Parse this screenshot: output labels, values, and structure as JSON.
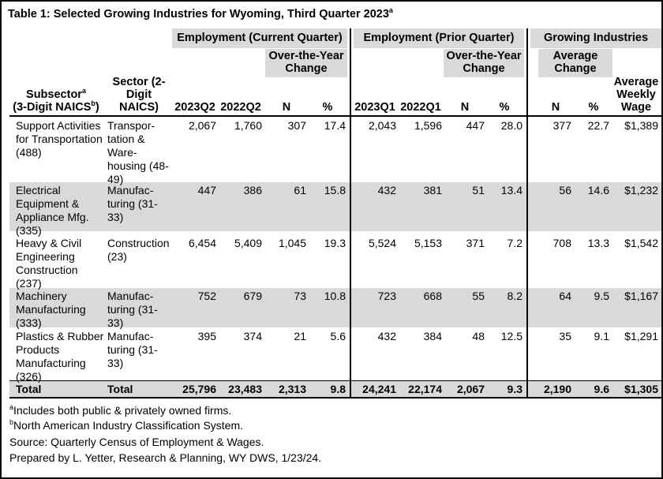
{
  "title": "Table 1: Selected Growing Industries for Wyoming, Third Quarter 2023",
  "title_sup": "a",
  "groups": {
    "current": "Employment (Current Quarter)",
    "prior": "Employment (Prior Quarter)",
    "growing": "Growing Industries"
  },
  "subgroups": {
    "oty": "Over-the-Year Change",
    "oty2": "Over-the-Year Change",
    "avg": "Average Change"
  },
  "columns": {
    "subsector_line1": "Subsector",
    "subsector_sup": "a",
    "subsector_line2": "(3-Digit NAICS",
    "subsector_sup2": "b",
    "subsector_close": ")",
    "sector": "Sector (2-Digit NAICS)",
    "q1": "2023Q2",
    "q2": "2022Q2",
    "n1": "N",
    "p1": "%",
    "q3": "2023Q1",
    "q4": "2022Q1",
    "n2": "N",
    "p2": "%",
    "n3": "N",
    "p3": "%",
    "wage": "Average Weekly Wage"
  },
  "rows": [
    {
      "sub": "Support Activities for Transportation (488)",
      "sector": "Transpor-tation & Ware-housing (48-49)",
      "v": [
        "2,067",
        "1,760",
        "307",
        "17.4",
        "2,043",
        "1,596",
        "447",
        "28.0",
        "377",
        "22.7",
        "$1,389"
      ]
    },
    {
      "sub": "Electrical Equipment & Appliance Mfg. (335)",
      "sector": "Manufac-turing (31-33)",
      "v": [
        "447",
        "386",
        "61",
        "15.8",
        "432",
        "381",
        "51",
        "13.4",
        "56",
        "14.6",
        "$1,232"
      ]
    },
    {
      "sub": "Heavy & Civil Engineering Construction (237)",
      "sector": "Construction (23)",
      "v": [
        "6,454",
        "5,409",
        "1,045",
        "19.3",
        "5,524",
        "5,153",
        "371",
        "7.2",
        "708",
        "13.3",
        "$1,542"
      ]
    },
    {
      "sub": "Machinery Manufacturing (333)",
      "sector": "Manufac-turing (31-33)",
      "v": [
        "752",
        "679",
        "73",
        "10.8",
        "723",
        "668",
        "55",
        "8.2",
        "64",
        "9.5",
        "$1,167"
      ]
    },
    {
      "sub": "Plastics & Rubber Products Manufacturing (326)",
      "sector": "Manufac-turing (31-33)",
      "v": [
        "395",
        "374",
        "21",
        "5.6",
        "432",
        "384",
        "48",
        "12.5",
        "35",
        "9.1",
        "$1,291"
      ]
    }
  ],
  "total": {
    "sub": "Total",
    "sector": "Total",
    "v": [
      "25,796",
      "23,483",
      "2,313",
      "9.8",
      "24,241",
      "22,174",
      "2,067",
      "9.3",
      "2,190",
      "9.6",
      "$1,305"
    ]
  },
  "footnotes": {
    "a_sup": "a",
    "a": "Includes both public & privately owned firms.",
    "b_sup": "b",
    "b": "North American Industry Classification System.",
    "source": "Source: Quarterly Census of Employment & Wages.",
    "prepared": "Prepared by L. Yetter, Research & Planning, WY DWS, 1/23/24."
  }
}
